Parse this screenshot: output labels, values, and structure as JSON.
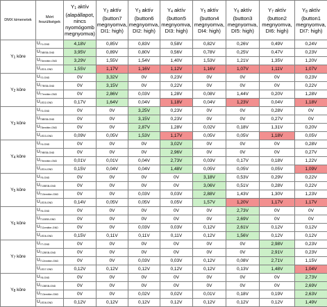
{
  "header": {
    "dmx_label": "DMX kimenetek",
    "measured_label": "Mért feszültségek",
    "columns": [
      {
        "letter": "Y",
        "sub": "1",
        "text": " aktív (alapállapot, nincs nyomógomb megnyomva)"
      },
      {
        "letter": "Y",
        "sub": "2",
        "text": " aktív (button7 megnyomva, DI1: high)"
      },
      {
        "letter": "Y",
        "sub": "3",
        "text": " aktív (button6 megnyomva, DI2: high)"
      },
      {
        "letter": "Y",
        "sub": "4",
        "text": " aktív (button5 megnyomva, DI3: high)"
      },
      {
        "letter": "Y",
        "sub": "5",
        "text": " aktív (button4 megnyomva, DI4: high)"
      },
      {
        "letter": "Y",
        "sub": "6",
        "text": " aktív (button3 megnyomva, DI5: high)"
      },
      {
        "letter": "Y",
        "sub": "7",
        "text": " aktív (button2 megnyomva, DI6: high)"
      },
      {
        "letter": "Y",
        "sub": "8",
        "text": " aktív (button1 megnyomva, DI7: high)"
      }
    ]
  },
  "groups": [
    {
      "label": "Y",
      "sub": "1",
      "suffix": " köre",
      "rows": [
        {
          "m": "U",
          "s": "Y1-GND",
          "v": [
            "4,18V",
            "0,85V",
            "0,83V",
            "0,58V",
            "0,82V",
            "0,26V",
            "0,49V",
            "0,24V"
          ],
          "c": [
            "g",
            "",
            "",
            "",
            "",
            "",
            "",
            ""
          ]
        },
        {
          "m": "U",
          "s": "T6BSB-GND",
          "v": [
            "3,95V",
            "0,89V",
            "0,80V",
            "0,56V",
            "0,78V",
            "0,25V",
            "0,47V",
            "0,23V"
          ],
          "c": [
            "g",
            "",
            "",
            "",
            "",
            "",
            "",
            ""
          ]
        },
        {
          "m": "U",
          "s": "T6emitter-GND",
          "v": [
            "3,29V",
            "1,55V",
            "1,54V",
            "1,40V",
            "1,53V",
            "1,21V",
            "1,35V",
            "1,20V"
          ],
          "c": [
            "g",
            "",
            "",
            "",
            "",
            "",
            "",
            ""
          ]
        },
        {
          "m": "U",
          "s": "LED1-GND",
          "v": [
            "1,55V",
            "1,17V",
            "1,16V",
            "1,12V",
            "1,16V",
            "1,07V",
            "1,11V",
            "1,07V"
          ],
          "c": [
            "g",
            "r",
            "r",
            "r",
            "r",
            "r",
            "r",
            "r"
          ]
        }
      ]
    },
    {
      "label": "Y",
      "sub": "2",
      "suffix": " köre",
      "rows": [
        {
          "m": "U",
          "s": "Y2-GND",
          "v": [
            "0V",
            "3,32V",
            "0V",
            "0,23V",
            "0V",
            "0V",
            "0V",
            "0,23V"
          ],
          "c": [
            "",
            "g",
            "",
            "",
            "",
            "",
            "",
            ""
          ]
        },
        {
          "m": "U",
          "s": "T7BSB-GND",
          "v": [
            "0V",
            "3,15V",
            "0V",
            "0,22V",
            "0V",
            "0V",
            "0V",
            "0,22V"
          ],
          "c": [
            "",
            "g",
            "",
            "",
            "",
            "",
            "",
            ""
          ]
        },
        {
          "m": "U",
          "s": "T7emitter-GND",
          "v": [
            "0V",
            "2,86V",
            "0,03V",
            "1,28V",
            "0,08V",
            "1,44V",
            "0,20V",
            "1,28V"
          ],
          "c": [
            "",
            "g",
            "",
            "",
            "",
            "",
            "",
            ""
          ]
        },
        {
          "m": "U",
          "s": "LED2-GND",
          "v": [
            "0,17V",
            "1,64V",
            "0,04V",
            "1,18V",
            "0,04V",
            "1,23V",
            "0,04V",
            "1,18V"
          ],
          "c": [
            "",
            "g",
            "",
            "r",
            "",
            "r",
            "",
            "r"
          ]
        }
      ]
    },
    {
      "label": "Y",
      "sub": "3",
      "suffix": " köre",
      "rows": [
        {
          "m": "U",
          "s": "Y3-GND",
          "v": [
            "0V",
            "0V",
            "3,25V",
            "0,23V",
            "0V",
            "0V",
            "0,28V",
            "0V"
          ],
          "c": [
            "",
            "",
            "g",
            "",
            "",
            "",
            "",
            ""
          ]
        },
        {
          "m": "U",
          "s": "T8BSB-GND",
          "v": [
            "0V",
            "0V",
            "3,15V",
            "0,23V",
            "0V",
            "0V",
            "0,27V",
            "0V"
          ],
          "c": [
            "",
            "",
            "g",
            "",
            "",
            "",
            "",
            ""
          ]
        },
        {
          "m": "U",
          "s": "T8emitter-GND",
          "v": [
            "0V",
            "0V",
            "2,87V",
            "1,28V",
            "0,02V",
            "0,18V",
            "1,31V",
            "0,20V"
          ],
          "c": [
            "",
            "",
            "g",
            "",
            "",
            "",
            "",
            ""
          ]
        },
        {
          "m": "U",
          "s": "LED3-GND",
          "v": [
            "0,09V",
            "0,05V",
            "1,53V",
            "1,17V",
            "0,05V",
            "0,05V",
            "1,18V",
            "0,05V"
          ],
          "c": [
            "",
            "",
            "g",
            "r",
            "",
            "",
            "r",
            ""
          ]
        }
      ]
    },
    {
      "label": "Y",
      "sub": "4",
      "suffix": " köre",
      "rows": [
        {
          "m": "U",
          "s": "Y4-GND",
          "v": [
            "0V",
            "0V",
            "0V",
            "3,02V",
            "0V",
            "0V",
            "0V",
            "0,28V"
          ],
          "c": [
            "",
            "",
            "",
            "g",
            "",
            "",
            "",
            ""
          ]
        },
        {
          "m": "U",
          "s": "T9BSB-GND",
          "v": [
            "0V",
            "0V",
            "0V",
            "2,96V",
            "0V",
            "0V",
            "0V",
            "0,27V"
          ],
          "c": [
            "",
            "",
            "",
            "g",
            "",
            "",
            "",
            ""
          ]
        },
        {
          "m": "U",
          "s": "T9emitter-GND",
          "v": [
            "0,01V",
            "0,01V",
            "0,04V",
            "2,73V",
            "0,03V",
            "0,17V",
            "0,18V",
            "1,22V"
          ],
          "c": [
            "",
            "",
            "",
            "g",
            "",
            "",
            "",
            ""
          ]
        },
        {
          "m": "U",
          "s": "LED4-GND",
          "v": [
            "0,15V",
            "0,04V",
            "0,04V",
            "1,48V",
            "0,05V",
            "0,05V",
            "0,05V",
            "1,09V"
          ],
          "c": [
            "",
            "",
            "",
            "g",
            "",
            "",
            "",
            "r"
          ]
        }
      ]
    },
    {
      "label": "Y",
      "sub": "5",
      "suffix": " köre",
      "rows": [
        {
          "m": "U",
          "s": "Y5-GND",
          "v": [
            "0V",
            "0V",
            "0V",
            "0V",
            "3,18V",
            "0,53V",
            "0,29V",
            "0,22V"
          ],
          "c": [
            "",
            "",
            "",
            "",
            "g",
            "",
            "",
            ""
          ]
        },
        {
          "m": "U",
          "s": "T10BSB-GND",
          "v": [
            "0V",
            "0V",
            "0V",
            "0V",
            "3,06V",
            "0,51V",
            "0,28V",
            "0,22V"
          ],
          "c": [
            "",
            "",
            "",
            "",
            "g",
            "",
            "",
            ""
          ]
        },
        {
          "m": "U",
          "s": "T10emitter-GND",
          "v": [
            "0V",
            "0V",
            "0,03V",
            "0,03V",
            "2,88V",
            "1,43V",
            "1,30V",
            "1,23V"
          ],
          "c": [
            "",
            "",
            "",
            "",
            "g",
            "",
            "",
            ""
          ]
        },
        {
          "m": "U",
          "s": "LED5-GND",
          "v": [
            "0,14V",
            "0,05V",
            "0,05V",
            "0,05V",
            "1,57V",
            "1,20V",
            "1,17V",
            "1,17V"
          ],
          "c": [
            "",
            "",
            "",
            "",
            "g",
            "r",
            "r",
            "r"
          ]
        }
      ]
    },
    {
      "label": "Y",
      "sub": "6",
      "suffix": " köre",
      "rows": [
        {
          "m": "U",
          "s": "Y6-GND",
          "v": [
            "0V",
            "0V",
            "0V",
            "0V",
            "0V",
            "2,73V",
            "0V",
            "0V"
          ],
          "c": [
            "",
            "",
            "",
            "",
            "",
            "g",
            "",
            ""
          ]
        },
        {
          "m": "U",
          "s": "T11BSB-GND",
          "v": [
            "0V",
            "0V",
            "0V",
            "0V",
            "0V",
            "2,69V",
            "0V",
            "0V"
          ],
          "c": [
            "",
            "",
            "",
            "",
            "",
            "g",
            "",
            ""
          ]
        },
        {
          "m": "U",
          "s": "T11emitter-GND",
          "v": [
            "0V",
            "0V",
            "0,03V",
            "0,03V",
            "0,12V",
            "2,61V",
            "0,12V",
            "0,12V"
          ],
          "c": [
            "",
            "",
            "",
            "",
            "",
            "g",
            "",
            ""
          ]
        },
        {
          "m": "U",
          "s": "LED6-GND",
          "v": [
            "0,15V",
            "0,11V",
            "0,11V",
            "0,11V",
            "0,12V",
            "1,56V",
            "0,12V",
            "0,12V"
          ],
          "c": [
            "",
            "",
            "",
            "",
            "",
            "g",
            "",
            ""
          ]
        }
      ]
    },
    {
      "label": "Y",
      "sub": "7",
      "suffix": " köre",
      "rows": [
        {
          "m": "U",
          "s": "Y7-GND",
          "v": [
            "0V",
            "0V",
            "0V",
            "0V",
            "0V",
            "0V",
            "2,98V",
            "0,23V"
          ],
          "c": [
            "",
            "",
            "",
            "",
            "",
            "",
            "g",
            ""
          ]
        },
        {
          "m": "U",
          "s": "T12BSB-GND",
          "v": [
            "0V",
            "0V",
            "0V",
            "0V",
            "0V",
            "0V",
            "2,91V",
            "0,23V"
          ],
          "c": [
            "",
            "",
            "",
            "",
            "",
            "",
            "g",
            ""
          ]
        },
        {
          "m": "U",
          "s": "T12emitter-GND",
          "v": [
            "0V",
            "0V",
            "0,03V",
            "0,03V",
            "0,12V",
            "0,08V",
            "2,71V",
            "1,15V"
          ],
          "c": [
            "",
            "",
            "",
            "",
            "",
            "",
            "g",
            ""
          ]
        },
        {
          "m": "U",
          "s": "LED7-GND",
          "v": [
            "0,12V",
            "0,12V",
            "0,12V",
            "0,12V",
            "0,12V",
            "0,13V",
            "1,48V",
            "1,04V"
          ],
          "c": [
            "",
            "",
            "",
            "",
            "",
            "",
            "g",
            "r"
          ]
        }
      ]
    },
    {
      "label": "Y",
      "sub": "8",
      "suffix": " köre",
      "rows": [
        {
          "m": "U",
          "s": "Y8-GND",
          "v": [
            "0V",
            "0V",
            "0V",
            "0V",
            "0V",
            "0V",
            "0V",
            "2,73V"
          ],
          "c": [
            "",
            "",
            "",
            "",
            "",
            "",
            "",
            "g"
          ]
        },
        {
          "m": "U",
          "s": "T13BSB-GND",
          "v": [
            "0V",
            "0V",
            "0V",
            "0V",
            "0V",
            "0V",
            "0V",
            "2,69V"
          ],
          "c": [
            "",
            "",
            "",
            "",
            "",
            "",
            "",
            "g"
          ]
        },
        {
          "m": "U",
          "s": "T13emitter-GND",
          "v": [
            "0V",
            "0V",
            "0,02V",
            "0,02V",
            "0,01V",
            "0,18V",
            "0,19V",
            "2,63V"
          ],
          "c": [
            "",
            "",
            "",
            "",
            "",
            "",
            "",
            "g"
          ]
        },
        {
          "m": "U",
          "s": "LED8-GND",
          "v": [
            "0,12V",
            "0,12V",
            "0,12V",
            "0,12V",
            "0,12V",
            "0,12V",
            "0,12V",
            "1,49V"
          ],
          "c": [
            "",
            "",
            "",
            "",
            "",
            "",
            "",
            "g"
          ]
        }
      ]
    }
  ]
}
